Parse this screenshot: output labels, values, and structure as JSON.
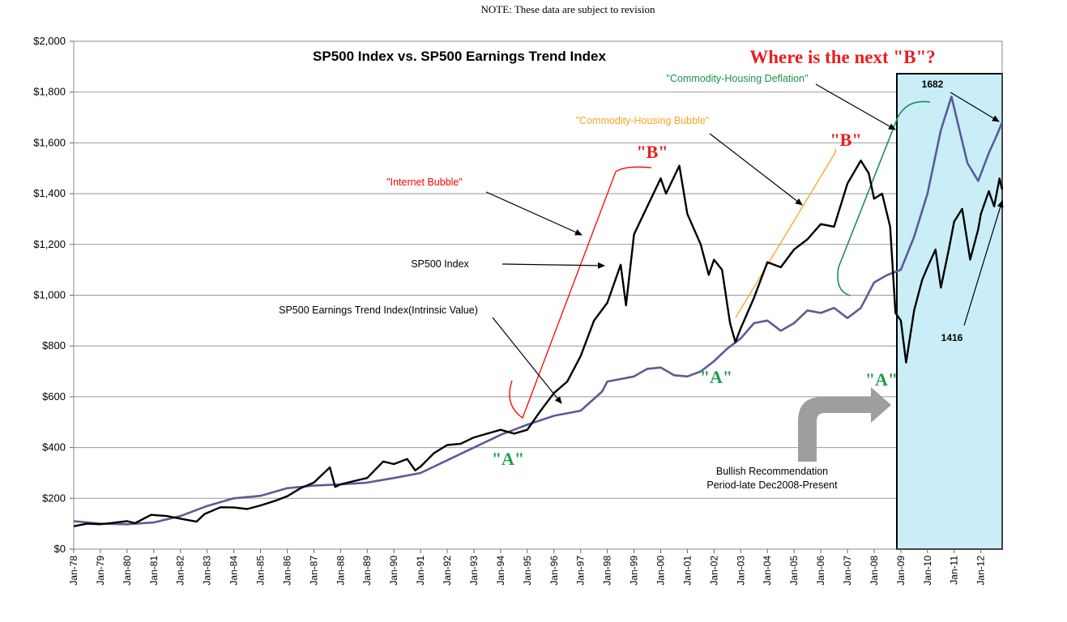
{
  "header_note": "NOTE: These data are subject to revision",
  "chart_data": {
    "type": "line",
    "title": "SP500 Index vs. SP500 Earnings Trend Index",
    "y_ticks": [
      "$0",
      "$200",
      "$400",
      "$600",
      "$800",
      "$1,000",
      "$1,200",
      "$1,400",
      "$1,600",
      "$1,800",
      "$2,000"
    ],
    "ylim": [
      0,
      2000
    ],
    "x_ticks": [
      "Jan-78",
      "Jan-79",
      "Jan-80",
      "Jan-81",
      "Jan-82",
      "Jan-83",
      "Jan-84",
      "Jan-85",
      "Jan-86",
      "Jan-87",
      "Jan-88",
      "Jan-89",
      "Jan-90",
      "Jan-91",
      "Jan-92",
      "Jan-93",
      "Jan-94",
      "Jan-95",
      "Jan-96",
      "Jan-97",
      "Jan-98",
      "Jan-99",
      "Jan-00",
      "Jan-01",
      "Jan-02",
      "Jan-03",
      "Jan-04",
      "Jan-05",
      "Jan-06",
      "Jan-07",
      "Jan-08",
      "Jan-09",
      "Jan-10",
      "Jan-11",
      "Jan-12"
    ],
    "xlim": [
      1978,
      2012.8
    ],
    "grid": true,
    "series": [
      {
        "name": "SP500 Index",
        "color": "#000000",
        "points": [
          [
            1978.0,
            90
          ],
          [
            1978.5,
            100
          ],
          [
            1979.0,
            98
          ],
          [
            1979.5,
            104
          ],
          [
            1980.0,
            110
          ],
          [
            1980.3,
            102
          ],
          [
            1980.9,
            135
          ],
          [
            1981.5,
            130
          ],
          [
            1982.0,
            120
          ],
          [
            1982.6,
            108
          ],
          [
            1982.9,
            138
          ],
          [
            1983.5,
            165
          ],
          [
            1984.0,
            164
          ],
          [
            1984.5,
            158
          ],
          [
            1985.0,
            172
          ],
          [
            1985.6,
            192
          ],
          [
            1986.0,
            208
          ],
          [
            1986.5,
            240
          ],
          [
            1987.0,
            262
          ],
          [
            1987.6,
            322
          ],
          [
            1987.8,
            245
          ],
          [
            1988.0,
            255
          ],
          [
            1988.5,
            268
          ],
          [
            1989.0,
            280
          ],
          [
            1989.6,
            345
          ],
          [
            1990.0,
            335
          ],
          [
            1990.5,
            355
          ],
          [
            1990.8,
            310
          ],
          [
            1991.0,
            325
          ],
          [
            1991.5,
            378
          ],
          [
            1992.0,
            410
          ],
          [
            1992.5,
            415
          ],
          [
            1993.0,
            440
          ],
          [
            1993.5,
            455
          ],
          [
            1994.0,
            470
          ],
          [
            1994.5,
            455
          ],
          [
            1995.0,
            470
          ],
          [
            1995.5,
            545
          ],
          [
            1996.0,
            615
          ],
          [
            1996.5,
            660
          ],
          [
            1997.0,
            760
          ],
          [
            1997.5,
            900
          ],
          [
            1998.0,
            970
          ],
          [
            1998.5,
            1120
          ],
          [
            1998.7,
            960
          ],
          [
            1999.0,
            1240
          ],
          [
            1999.5,
            1350
          ],
          [
            2000.0,
            1460
          ],
          [
            2000.2,
            1400
          ],
          [
            2000.7,
            1510
          ],
          [
            2001.0,
            1320
          ],
          [
            2001.5,
            1200
          ],
          [
            2001.8,
            1080
          ],
          [
            2002.0,
            1140
          ],
          [
            2002.3,
            1100
          ],
          [
            2002.6,
            890
          ],
          [
            2002.8,
            815
          ],
          [
            2003.0,
            870
          ],
          [
            2003.5,
            990
          ],
          [
            2004.0,
            1130
          ],
          [
            2004.5,
            1110
          ],
          [
            2005.0,
            1180
          ],
          [
            2005.5,
            1220
          ],
          [
            2006.0,
            1280
          ],
          [
            2006.5,
            1270
          ],
          [
            2007.0,
            1440
          ],
          [
            2007.5,
            1530
          ],
          [
            2007.8,
            1480
          ],
          [
            2008.0,
            1380
          ],
          [
            2008.3,
            1400
          ],
          [
            2008.6,
            1270
          ],
          [
            2008.8,
            930
          ],
          [
            2009.0,
            900
          ],
          [
            2009.2,
            735
          ],
          [
            2009.5,
            940
          ],
          [
            2009.8,
            1060
          ],
          [
            2010.0,
            1110
          ],
          [
            2010.3,
            1180
          ],
          [
            2010.5,
            1030
          ],
          [
            2010.8,
            1180
          ],
          [
            2011.0,
            1290
          ],
          [
            2011.3,
            1340
          ],
          [
            2011.6,
            1140
          ],
          [
            2011.9,
            1260
          ],
          [
            2012.0,
            1320
          ],
          [
            2012.3,
            1410
          ],
          [
            2012.5,
            1350
          ],
          [
            2012.7,
            1460
          ],
          [
            2012.8,
            1416
          ]
        ]
      },
      {
        "name": "SP500 Earnings Trend Index(Intrinsic Value)",
        "color": "#5b5b99",
        "points": [
          [
            1978.0,
            110
          ],
          [
            1979.0,
            100
          ],
          [
            1980.0,
            98
          ],
          [
            1981.0,
            105
          ],
          [
            1982.0,
            130
          ],
          [
            1983.0,
            170
          ],
          [
            1984.0,
            200
          ],
          [
            1985.0,
            210
          ],
          [
            1986.0,
            240
          ],
          [
            1987.0,
            250
          ],
          [
            1988.0,
            255
          ],
          [
            1989.0,
            262
          ],
          [
            1990.0,
            280
          ],
          [
            1991.0,
            300
          ],
          [
            1992.0,
            350
          ],
          [
            1993.0,
            400
          ],
          [
            1994.0,
            450
          ],
          [
            1995.0,
            490
          ],
          [
            1996.0,
            525
          ],
          [
            1997.0,
            545
          ],
          [
            1997.8,
            620
          ],
          [
            1998.0,
            660
          ],
          [
            1998.5,
            670
          ],
          [
            1999.0,
            680
          ],
          [
            1999.5,
            710
          ],
          [
            2000.0,
            715
          ],
          [
            2000.5,
            685
          ],
          [
            2001.0,
            680
          ],
          [
            2001.5,
            700
          ],
          [
            2002.0,
            740
          ],
          [
            2002.5,
            790
          ],
          [
            2003.0,
            830
          ],
          [
            2003.5,
            890
          ],
          [
            2004.0,
            900
          ],
          [
            2004.5,
            860
          ],
          [
            2005.0,
            890
          ],
          [
            2005.5,
            940
          ],
          [
            2006.0,
            930
          ],
          [
            2006.5,
            950
          ],
          [
            2007.0,
            910
          ],
          [
            2007.5,
            950
          ],
          [
            2008.0,
            1050
          ],
          [
            2008.5,
            1080
          ],
          [
            2009.0,
            1100
          ],
          [
            2009.5,
            1230
          ],
          [
            2010.0,
            1400
          ],
          [
            2010.5,
            1650
          ],
          [
            2010.9,
            1782
          ],
          [
            2011.2,
            1650
          ],
          [
            2011.5,
            1520
          ],
          [
            2011.9,
            1450
          ],
          [
            2012.3,
            1560
          ],
          [
            2012.6,
            1630
          ],
          [
            2012.8,
            1682
          ]
        ]
      }
    ],
    "annotations": {
      "where_next_b": "Where is the next \"B\"?",
      "commodity_housing_deflation": "\"Commodity-Housing Deflation\"",
      "commodity_housing_bubble": "\"Commodity-Housing Bubble\"",
      "internet_bubble": "\"Internet Bubble\"",
      "sp500_index_label": "SP500 Index",
      "earnings_trend_label": "SP500 Earnings Trend Index(Intrinsic Value)",
      "b_label": "\"B\"",
      "a_label": "\"A\"",
      "value_1682": "1682",
      "value_1416": "1416",
      "bullish_line1": "Bullish Recommendation",
      "bullish_line2": "Period-late Dec2008-Present"
    },
    "colors": {
      "internet_bubble": "#ff0000",
      "commodity_bubble": "#f5a623",
      "commodity_deflation": "#1e8f4e",
      "a_label": "#1e9e4a",
      "b_label": "#e61f1f",
      "highlight_fill": "#c9eef8"
    }
  }
}
